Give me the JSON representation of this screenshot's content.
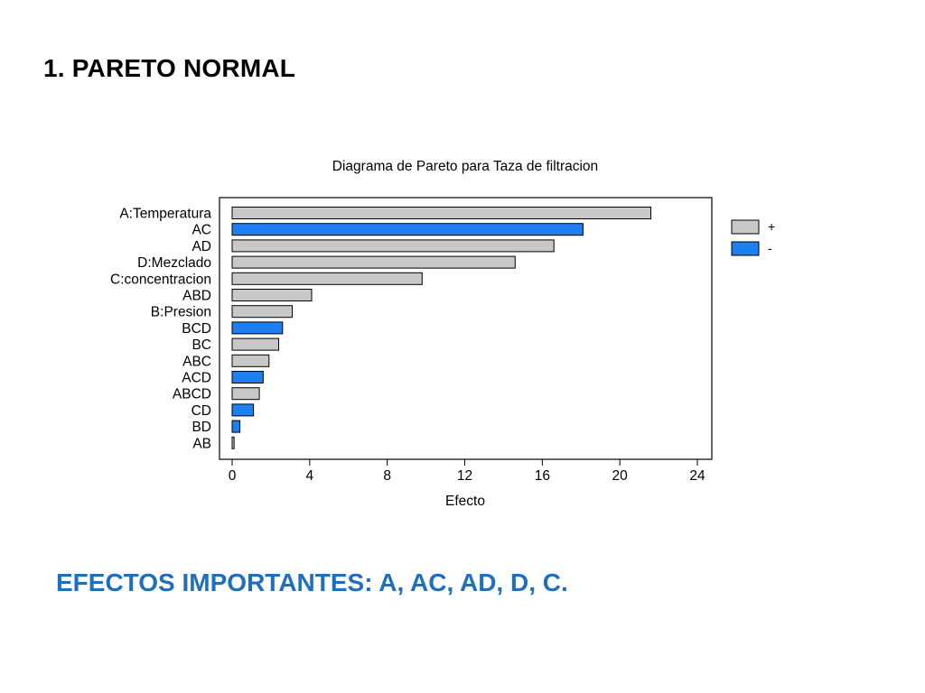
{
  "slide": {
    "title": "1. PARETO NORMAL",
    "conclusion": "EFECTOS IMPORTANTES: A, AC, AD, D, C."
  },
  "colors": {
    "positive": "#c8c8c8",
    "negative": "#1e7ff0",
    "conclusion_text": "#1f6fbf"
  },
  "chart_data": {
    "type": "bar",
    "orientation": "horizontal",
    "title": "Diagrama de Pareto para Taza de filtracion",
    "xlabel": "Efecto",
    "ylabel": "",
    "xlim": [
      0,
      24
    ],
    "xticks": [
      0,
      4,
      8,
      12,
      16,
      20,
      24
    ],
    "categories": [
      "A:Temperatura",
      "AC",
      "AD",
      "D:Mezclado",
      "C:concentracion",
      "ABD",
      "B:Presion",
      "BCD",
      "BC",
      "ABC",
      "ACD",
      "ABCD",
      "CD",
      "BD",
      "AB"
    ],
    "values": [
      21.6,
      18.1,
      16.6,
      14.6,
      9.8,
      4.1,
      3.1,
      2.6,
      2.4,
      1.9,
      1.6,
      1.4,
      1.1,
      0.4,
      0.1
    ],
    "signs": [
      "+",
      "-",
      "+",
      "+",
      "+",
      "+",
      "+",
      "-",
      "+",
      "+",
      "-",
      "+",
      "-",
      "-",
      "+"
    ],
    "legend": {
      "position": "right",
      "entries": [
        {
          "label": "+",
          "sign": "+"
        },
        {
          "label": "-",
          "sign": "-"
        }
      ]
    },
    "grid": false
  }
}
